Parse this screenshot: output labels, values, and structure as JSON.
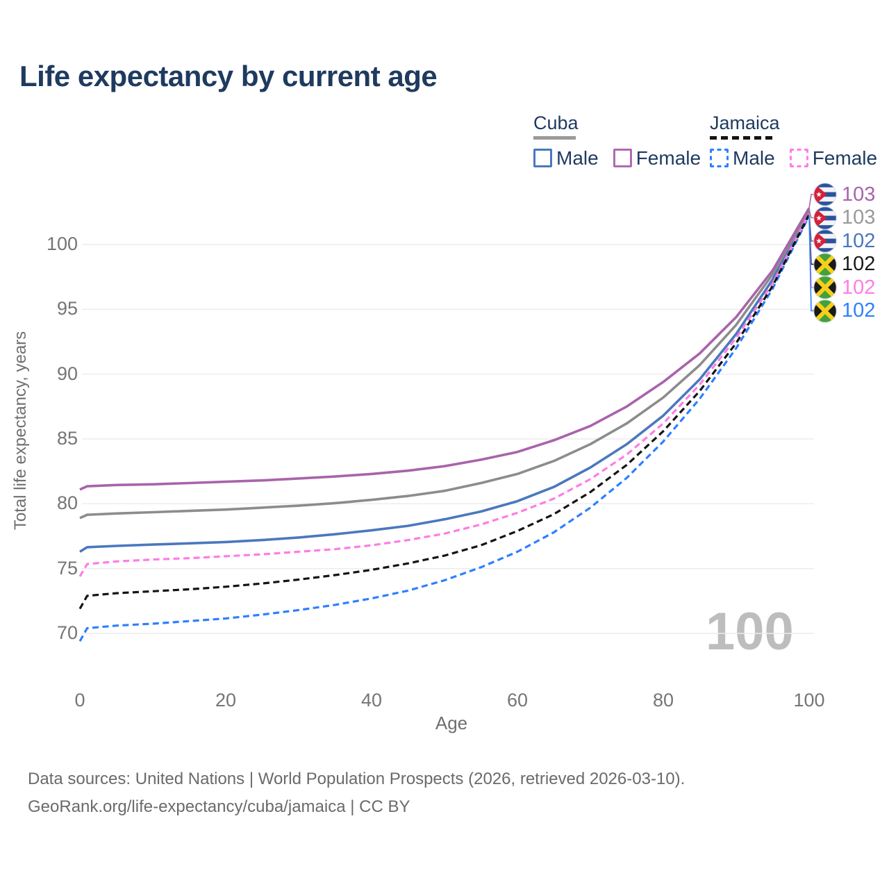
{
  "title": "Life expectancy by current age",
  "legend": {
    "groups": [
      {
        "id": "cuba",
        "title": "Cuba",
        "underline_color": "#9a9a9a",
        "underline_style": "solid",
        "items": [
          {
            "label": "Male",
            "color": "#4a78be",
            "dashed": false
          },
          {
            "label": "Female",
            "color": "#b06ab2",
            "dashed": false
          }
        ]
      },
      {
        "id": "jamaica",
        "title": "Jamaica",
        "underline_color": "#141414",
        "underline_style": "dashed",
        "items": [
          {
            "label": "Male",
            "color": "#2e7fff",
            "dashed": true
          },
          {
            "label": "Female",
            "color": "#ff7ce3",
            "dashed": true
          }
        ]
      }
    ]
  },
  "chart_data": {
    "type": "line",
    "title": "Life expectancy by current age",
    "xlabel": "Age",
    "ylabel": "Total life expectancy, years",
    "xlim": [
      0,
      100
    ],
    "ylim": [
      67,
      104
    ],
    "x_ticks": [
      0,
      20,
      40,
      60,
      80,
      100
    ],
    "y_ticks": [
      100,
      95,
      90,
      85,
      80,
      75,
      70
    ],
    "grid": "horizontal",
    "gridline_color": "#ebebeb",
    "watermark": "100",
    "legend_position": "top-right",
    "series": [
      {
        "name": "Cuba Female",
        "id": "cuba-female",
        "country": "Cuba",
        "sex": "Female",
        "color": "#a963ab",
        "dashed": false,
        "points": [
          [
            0,
            81.1
          ],
          [
            1,
            81.35
          ],
          [
            5,
            81.45
          ],
          [
            10,
            81.5
          ],
          [
            15,
            81.6
          ],
          [
            20,
            81.7
          ],
          [
            25,
            81.8
          ],
          [
            30,
            81.95
          ],
          [
            35,
            82.1
          ],
          [
            40,
            82.3
          ],
          [
            45,
            82.55
          ],
          [
            50,
            82.9
          ],
          [
            55,
            83.4
          ],
          [
            60,
            84.0
          ],
          [
            65,
            84.9
          ],
          [
            70,
            86.0
          ],
          [
            75,
            87.5
          ],
          [
            80,
            89.4
          ],
          [
            85,
            91.6
          ],
          [
            90,
            94.4
          ],
          [
            95,
            98.0
          ],
          [
            100,
            102.8
          ]
        ]
      },
      {
        "name": "Cuba (both sexes)",
        "id": "cuba-total",
        "country": "Cuba",
        "sex": "Both",
        "color": "#8c8c8c",
        "dashed": false,
        "points": [
          [
            0,
            78.9
          ],
          [
            1,
            79.15
          ],
          [
            5,
            79.25
          ],
          [
            10,
            79.35
          ],
          [
            15,
            79.45
          ],
          [
            20,
            79.55
          ],
          [
            25,
            79.7
          ],
          [
            30,
            79.85
          ],
          [
            35,
            80.05
          ],
          [
            40,
            80.3
          ],
          [
            45,
            80.6
          ],
          [
            50,
            81.0
          ],
          [
            55,
            81.6
          ],
          [
            60,
            82.3
          ],
          [
            65,
            83.3
          ],
          [
            70,
            84.6
          ],
          [
            75,
            86.2
          ],
          [
            80,
            88.2
          ],
          [
            85,
            90.7
          ],
          [
            90,
            93.8
          ],
          [
            95,
            97.7
          ],
          [
            100,
            102.7
          ]
        ]
      },
      {
        "name": "Cuba Male",
        "id": "cuba-male",
        "country": "Cuba",
        "sex": "Male",
        "color": "#4a78be",
        "dashed": false,
        "points": [
          [
            0,
            76.3
          ],
          [
            1,
            76.65
          ],
          [
            5,
            76.75
          ],
          [
            10,
            76.85
          ],
          [
            15,
            76.95
          ],
          [
            20,
            77.05
          ],
          [
            25,
            77.2
          ],
          [
            30,
            77.4
          ],
          [
            35,
            77.65
          ],
          [
            40,
            77.95
          ],
          [
            45,
            78.3
          ],
          [
            50,
            78.8
          ],
          [
            55,
            79.4
          ],
          [
            60,
            80.2
          ],
          [
            65,
            81.3
          ],
          [
            70,
            82.8
          ],
          [
            75,
            84.6
          ],
          [
            80,
            86.8
          ],
          [
            85,
            89.6
          ],
          [
            90,
            93.1
          ],
          [
            95,
            97.3
          ],
          [
            100,
            102.5
          ]
        ]
      },
      {
        "name": "Jamaica (both sexes)",
        "id": "jamaica-total",
        "country": "Jamaica",
        "sex": "Both",
        "color": "#141414",
        "dashed": true,
        "points": [
          [
            0,
            71.9
          ],
          [
            1,
            72.9
          ],
          [
            5,
            73.1
          ],
          [
            10,
            73.25
          ],
          [
            15,
            73.4
          ],
          [
            20,
            73.6
          ],
          [
            25,
            73.85
          ],
          [
            30,
            74.15
          ],
          [
            35,
            74.5
          ],
          [
            40,
            74.9
          ],
          [
            45,
            75.4
          ],
          [
            50,
            76.0
          ],
          [
            55,
            76.8
          ],
          [
            60,
            77.9
          ],
          [
            65,
            79.2
          ],
          [
            70,
            80.9
          ],
          [
            75,
            83.0
          ],
          [
            80,
            85.6
          ],
          [
            85,
            88.7
          ],
          [
            90,
            92.4
          ],
          [
            95,
            96.8
          ],
          [
            100,
            102.3
          ]
        ]
      },
      {
        "name": "Jamaica Female",
        "id": "jamaica-female",
        "country": "Jamaica",
        "sex": "Female",
        "color": "#ff7ce3",
        "dashed": true,
        "points": [
          [
            0,
            74.4
          ],
          [
            1,
            75.35
          ],
          [
            5,
            75.55
          ],
          [
            10,
            75.7
          ],
          [
            15,
            75.8
          ],
          [
            20,
            75.95
          ],
          [
            25,
            76.1
          ],
          [
            30,
            76.3
          ],
          [
            35,
            76.5
          ],
          [
            40,
            76.8
          ],
          [
            45,
            77.2
          ],
          [
            50,
            77.7
          ],
          [
            55,
            78.4
          ],
          [
            60,
            79.3
          ],
          [
            65,
            80.4
          ],
          [
            70,
            81.9
          ],
          [
            75,
            83.8
          ],
          [
            80,
            86.2
          ],
          [
            85,
            89.2
          ],
          [
            90,
            92.8
          ],
          [
            95,
            97.0
          ],
          [
            100,
            102.4
          ]
        ]
      },
      {
        "name": "Jamaica Male",
        "id": "jamaica-male",
        "country": "Jamaica",
        "sex": "Male",
        "color": "#2e7fff",
        "dashed": true,
        "points": [
          [
            0,
            69.4
          ],
          [
            1,
            70.4
          ],
          [
            5,
            70.6
          ],
          [
            10,
            70.75
          ],
          [
            15,
            70.95
          ],
          [
            20,
            71.15
          ],
          [
            25,
            71.45
          ],
          [
            30,
            71.8
          ],
          [
            35,
            72.2
          ],
          [
            40,
            72.7
          ],
          [
            45,
            73.3
          ],
          [
            50,
            74.1
          ],
          [
            55,
            75.1
          ],
          [
            60,
            76.3
          ],
          [
            65,
            77.8
          ],
          [
            70,
            79.7
          ],
          [
            75,
            82.0
          ],
          [
            80,
            84.8
          ],
          [
            85,
            88.1
          ],
          [
            90,
            92.0
          ],
          [
            95,
            96.6
          ],
          [
            100,
            102.2
          ]
        ]
      }
    ],
    "end_labels": [
      {
        "series": "cuba-female",
        "flag": "cuba",
        "value": "103",
        "color": "#a963ab"
      },
      {
        "series": "cuba-total",
        "flag": "cuba",
        "value": "103",
        "color": "#999999"
      },
      {
        "series": "cuba-male",
        "flag": "cuba",
        "value": "102",
        "color": "#4a78be"
      },
      {
        "series": "jamaica-total",
        "flag": "jamaica",
        "value": "102",
        "color": "#1a1a1a"
      },
      {
        "series": "jamaica-female",
        "flag": "jamaica",
        "value": "102",
        "color": "#ff7ce3"
      },
      {
        "series": "jamaica-male",
        "flag": "jamaica",
        "value": "102",
        "color": "#2e7fff"
      }
    ]
  },
  "footer": {
    "line1": "Data sources: United Nations | World Population Prospects (2026, retrieved 2026-03-10).",
    "line2": "GeoRank.org/life-expectancy/cuba/jamaica | CC BY"
  }
}
